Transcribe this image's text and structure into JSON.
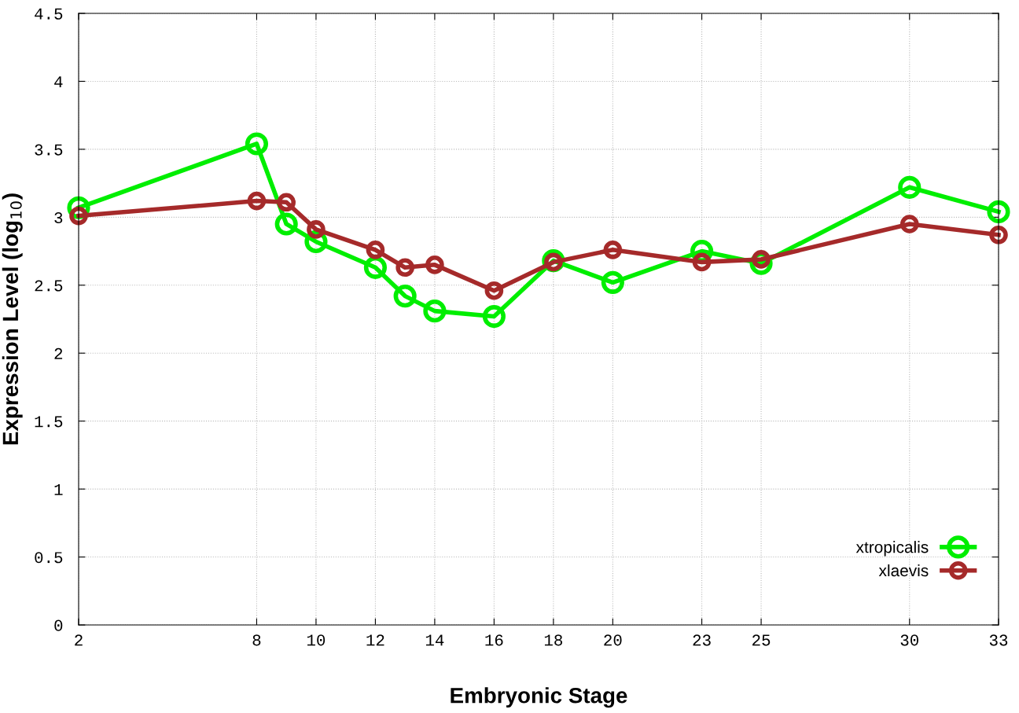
{
  "chart_data": {
    "type": "line",
    "xlabel": "Embryonic Stage",
    "ylabel": "Expression Level (log$_{10}$)",
    "x": [
      2,
      8,
      9,
      10,
      12,
      13,
      14,
      16,
      18,
      20,
      23,
      25,
      30,
      33
    ],
    "series": [
      {
        "name": "xtropicalis",
        "color": "#00ee00",
        "values": [
          3.07,
          3.54,
          2.95,
          2.82,
          2.63,
          2.42,
          2.31,
          2.27,
          2.68,
          2.52,
          2.75,
          2.66,
          3.22,
          3.04
        ]
      },
      {
        "name": "xlaevis",
        "color": "#a52a2a",
        "values": [
          3.01,
          3.12,
          3.11,
          2.91,
          2.76,
          2.63,
          2.65,
          2.46,
          2.67,
          2.76,
          2.67,
          2.69,
          2.95,
          2.87
        ]
      }
    ],
    "xlim": [
      2,
      33
    ],
    "xticks": [
      2,
      8,
      10,
      12,
      14,
      16,
      18,
      20,
      23,
      25,
      30,
      33
    ],
    "ylim": [
      0,
      4.5
    ],
    "yticks": [
      0,
      0.5,
      1,
      1.5,
      2,
      2.5,
      3,
      3.5,
      4,
      4.5
    ],
    "grid": true,
    "legend": "bottom right",
    "marker": "circle",
    "line_style": "solid"
  }
}
